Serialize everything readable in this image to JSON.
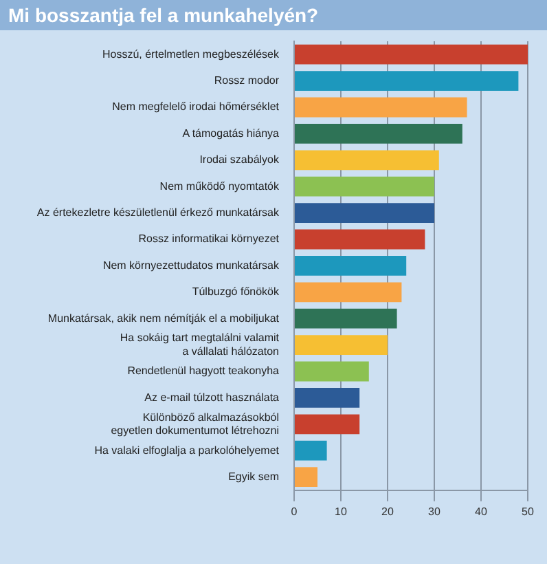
{
  "chart_data": {
    "type": "bar",
    "orientation": "horizontal",
    "title": "Mi bosszantja fel a munkahelyén?",
    "categories": [
      "Hosszú, értelmetlen megbeszélések",
      "Rossz modor",
      "Nem megfelelő irodai hőmérséklet",
      "A támogatás hiánya",
      "Irodai szabályok",
      "Nem működő nyomtatók",
      "Az értekezletre készületlenül érkező munkatársak",
      "Rossz informatikai környezet",
      "Nem környezettudatos munkatársak",
      "Túlbuzgó főnökök",
      "Munkatársak, akik nem némítják el a mobiljukat",
      "Ha sokáig tart megtalálni valamit\na vállalati hálózaton",
      "Rendetlenül hagyott teakonyha",
      "Az e-mail túlzott használata",
      "Különböző alkalmazásokból\negyetlen dokumentumot létrehozni",
      "Ha valaki elfoglalja a parkolóhelyemet",
      "Egyik sem"
    ],
    "values": [
      50,
      48,
      37,
      36,
      31,
      30,
      30,
      28,
      24,
      23,
      22,
      20,
      16,
      14,
      14,
      7,
      5
    ],
    "colors": [
      "#c8402e",
      "#1d98bd",
      "#f8a445",
      "#2e7356",
      "#f6bf33",
      "#8cc152",
      "#2c5b97",
      "#c8402e",
      "#1d98bd",
      "#f8a445",
      "#2e7356",
      "#f6bf33",
      "#8cc152",
      "#2c5b97",
      "#c8402e",
      "#1d98bd",
      "#f8a445"
    ],
    "xlim": [
      0,
      50
    ],
    "xticks": [
      0,
      10,
      20,
      30,
      40,
      50
    ],
    "grid": "x",
    "legend": false
  }
}
